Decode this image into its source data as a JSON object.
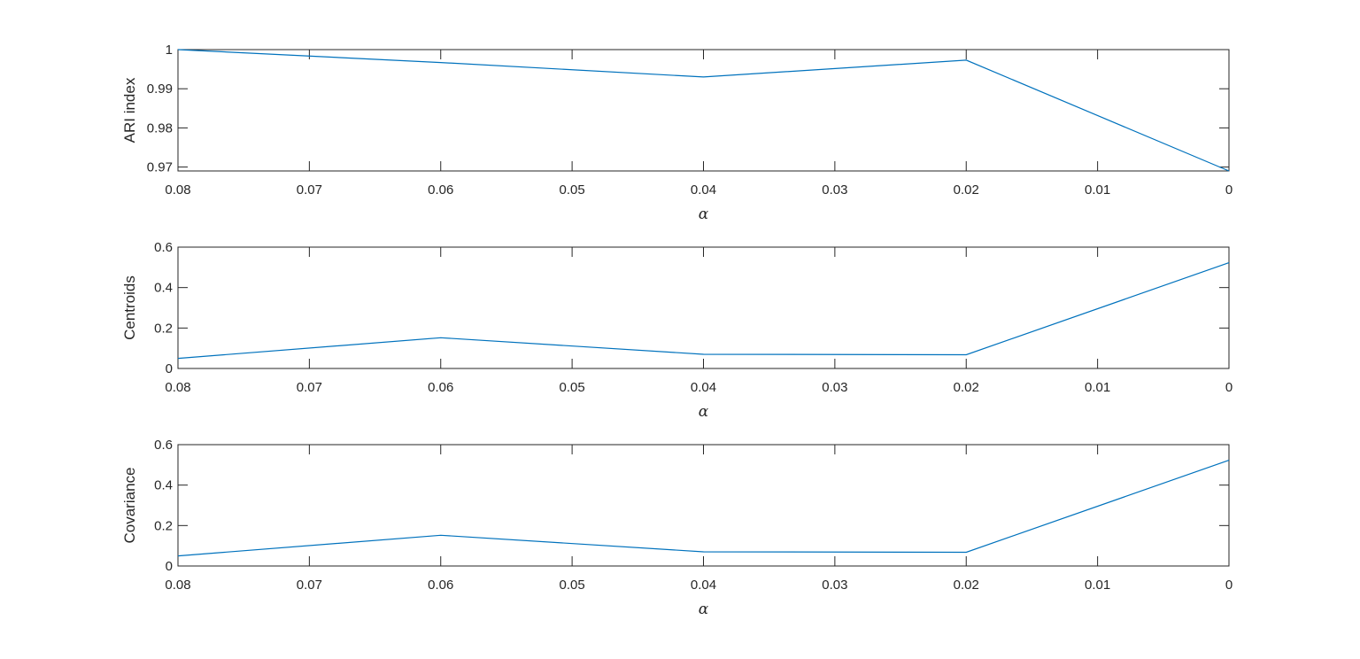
{
  "chart_data": [
    {
      "type": "line",
      "ylabel": "ARI index",
      "xlabel": "α",
      "x": [
        0.08,
        0.06,
        0.04,
        0.02,
        0
      ],
      "series": [
        {
          "values": [
            1.0,
            0.9967,
            0.993,
            0.9973,
            0.969
          ],
          "color": "#0072bd"
        }
      ],
      "xlim": [
        0.08,
        0
      ],
      "ylim": [
        0.969,
        1.0
      ],
      "x_reversed": true,
      "xticks": [
        0.08,
        0.07,
        0.06,
        0.05,
        0.04,
        0.03,
        0.02,
        0.01,
        0
      ],
      "xtick_labels": [
        "0.08",
        "0.07",
        "0.06",
        "0.05",
        "0.04",
        "0.03",
        "0.02",
        "0.01",
        "0"
      ],
      "yticks": [
        0.97,
        0.98,
        0.99,
        1.0
      ],
      "ytick_labels": [
        "0.97",
        "0.98",
        "0.99",
        "1"
      ],
      "grid": false
    },
    {
      "type": "line",
      "ylabel": "Centroids",
      "xlabel": "α",
      "x": [
        0.08,
        0.06,
        0.04,
        0.02,
        0
      ],
      "series": [
        {
          "values": [
            0.05,
            0.152,
            0.07,
            0.068,
            0.523
          ],
          "color": "#0072bd"
        }
      ],
      "xlim": [
        0.08,
        0
      ],
      "ylim": [
        0,
        0.6
      ],
      "x_reversed": true,
      "xticks": [
        0.08,
        0.07,
        0.06,
        0.05,
        0.04,
        0.03,
        0.02,
        0.01,
        0
      ],
      "xtick_labels": [
        "0.08",
        "0.07",
        "0.06",
        "0.05",
        "0.04",
        "0.03",
        "0.02",
        "0.01",
        "0"
      ],
      "yticks": [
        0,
        0.2,
        0.4,
        0.6
      ],
      "ytick_labels": [
        "0",
        "0.2",
        "0.4",
        "0.6"
      ],
      "grid": false
    },
    {
      "type": "line",
      "ylabel": "Covariance",
      "xlabel": "α",
      "x": [
        0.08,
        0.06,
        0.04,
        0.02,
        0
      ],
      "series": [
        {
          "values": [
            0.05,
            0.152,
            0.07,
            0.068,
            0.523
          ],
          "color": "#0072bd"
        }
      ],
      "xlim": [
        0.08,
        0
      ],
      "ylim": [
        0,
        0.6
      ],
      "x_reversed": true,
      "xticks": [
        0.08,
        0.07,
        0.06,
        0.05,
        0.04,
        0.03,
        0.02,
        0.01,
        0
      ],
      "xtick_labels": [
        "0.08",
        "0.07",
        "0.06",
        "0.05",
        "0.04",
        "0.03",
        "0.02",
        "0.01",
        "0"
      ],
      "yticks": [
        0,
        0.2,
        0.4,
        0.6
      ],
      "ytick_labels": [
        "0",
        "0.2",
        "0.4",
        "0.6"
      ],
      "grid": false
    }
  ]
}
